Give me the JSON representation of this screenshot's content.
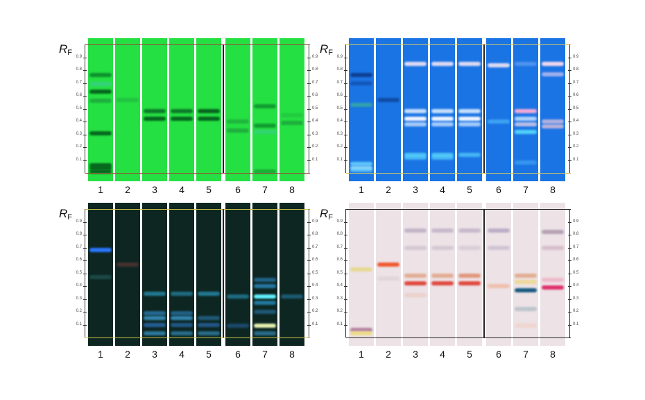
{
  "rf_label": {
    "main": "R",
    "sub": "F"
  },
  "ticks": [
    "0.1",
    "0.2",
    "0.3",
    "0.4",
    "0.5",
    "0.6",
    "0.7",
    "0.8",
    "0.9"
  ],
  "lane_numbers": [
    "1",
    "2",
    "3",
    "4",
    "5",
    "6",
    "7",
    "8"
  ],
  "plates": [
    {
      "name": "green-plate",
      "background": "#25e043",
      "line_color": "#9a4a3a",
      "left_labels": true,
      "right_labels": true,
      "lanes": [
        [
          {
            "rf": 0.76,
            "c": "#0c8a2c",
            "o": 0.9
          },
          {
            "rf": 0.69,
            "c": "#3fc9a0",
            "o": 0.6
          },
          {
            "rf": 0.63,
            "c": "#06661e",
            "o": 1
          },
          {
            "rf": 0.56,
            "c": "#1a9a3a",
            "o": 0.7
          },
          {
            "rf": 0.31,
            "c": "#06661e",
            "o": 1
          },
          {
            "rf": 0.06,
            "c": "#06661e",
            "o": 1
          },
          {
            "rf": 0.04,
            "c": "#06661e",
            "o": 1
          },
          {
            "rf": 0.01,
            "c": "#06661e",
            "o": 1
          }
        ],
        [
          {
            "rf": 0.57,
            "c": "#1a9a3a",
            "o": 0.4
          }
        ],
        [
          {
            "rf": 0.48,
            "c": "#0a7226",
            "o": 0.9
          },
          {
            "rf": 0.42,
            "c": "#06661e",
            "o": 1
          }
        ],
        [
          {
            "rf": 0.48,
            "c": "#0a7226",
            "o": 0.9
          },
          {
            "rf": 0.42,
            "c": "#06661e",
            "o": 1
          }
        ],
        [
          {
            "rf": 0.48,
            "c": "#06661e",
            "o": 1
          },
          {
            "rf": 0.42,
            "c": "#06661e",
            "o": 1
          }
        ],
        [
          {
            "rf": 0.4,
            "c": "#1a9a3a",
            "o": 0.6
          },
          {
            "rf": 0.33,
            "c": "#1a9a3a",
            "o": 0.7
          }
        ],
        [
          {
            "rf": 0.52,
            "c": "#0c8a2c",
            "o": 0.8
          },
          {
            "rf": 0.37,
            "c": "#0c8a2c",
            "o": 0.8
          },
          {
            "rf": 0.32,
            "c": "#3fc9a0",
            "o": 0.5
          },
          {
            "rf": 0.01,
            "c": "#0c8a2c",
            "o": 0.6
          }
        ],
        [
          {
            "rf": 0.45,
            "c": "#1a9a3a",
            "o": 0.3
          },
          {
            "rf": 0.39,
            "c": "#1a9a3a",
            "o": 0.7
          }
        ]
      ]
    },
    {
      "name": "blue-plate",
      "background": "#1b74e4",
      "line_color": "#c9c36a",
      "left_labels": true,
      "right_labels": true,
      "lanes": [
        [
          {
            "rf": 0.76,
            "c": "#0b3c8c",
            "o": 0.9
          },
          {
            "rf": 0.7,
            "c": "#0f4ca8",
            "o": 0.7
          },
          {
            "rf": 0.53,
            "c": "#3fbf8a",
            "o": 0.6
          },
          {
            "rf": 0.07,
            "c": "#70d8ff",
            "o": 0.8
          },
          {
            "rf": 0.04,
            "c": "#a0e8ff",
            "o": 0.8
          },
          {
            "rf": 0.02,
            "c": "#70d8ff",
            "o": 0.6
          }
        ],
        [
          {
            "rf": 0.57,
            "c": "#0b3c8c",
            "o": 0.7
          }
        ],
        [
          {
            "rf": 0.85,
            "c": "#e8e0f4",
            "o": 0.95
          },
          {
            "rf": 0.48,
            "c": "#d8eaff",
            "o": 0.9
          },
          {
            "rf": 0.42,
            "c": "#eef4ff",
            "o": 1
          },
          {
            "rf": 0.38,
            "c": "#c8e0ff",
            "o": 0.8
          },
          {
            "rf": 0.14,
            "c": "#60e0ff",
            "o": 0.7
          },
          {
            "rf": 0.12,
            "c": "#60e0ff",
            "o": 0.6
          }
        ],
        [
          {
            "rf": 0.85,
            "c": "#e8e0f4",
            "o": 0.95
          },
          {
            "rf": 0.48,
            "c": "#d8eaff",
            "o": 0.9
          },
          {
            "rf": 0.42,
            "c": "#eef4ff",
            "o": 1
          },
          {
            "rf": 0.38,
            "c": "#c8e0ff",
            "o": 0.8
          },
          {
            "rf": 0.14,
            "c": "#60e0ff",
            "o": 0.7
          },
          {
            "rf": 0.12,
            "c": "#60e0ff",
            "o": 0.6
          }
        ],
        [
          {
            "rf": 0.85,
            "c": "#e8e0f4",
            "o": 0.95
          },
          {
            "rf": 0.48,
            "c": "#d8eaff",
            "o": 0.9
          },
          {
            "rf": 0.42,
            "c": "#eef4ff",
            "o": 1
          },
          {
            "rf": 0.38,
            "c": "#c8e0ff",
            "o": 0.8
          },
          {
            "rf": 0.14,
            "c": "#60e0ff",
            "o": 0.6
          }
        ],
        [
          {
            "rf": 0.84,
            "c": "#e8e0f4",
            "o": 0.95
          },
          {
            "rf": 0.4,
            "c": "#60d0ff",
            "o": 0.5
          }
        ],
        [
          {
            "rf": 0.85,
            "c": "#9ac0ff",
            "o": 0.4
          },
          {
            "rf": 0.48,
            "c": "#f2a8d8",
            "o": 1
          },
          {
            "rf": 0.42,
            "c": "#d0e8ff",
            "o": 0.8
          },
          {
            "rf": 0.38,
            "c": "#e0d0e8",
            "o": 0.8
          },
          {
            "rf": 0.32,
            "c": "#60e8ff",
            "o": 0.8
          },
          {
            "rf": 0.08,
            "c": "#60c8ff",
            "o": 0.4
          }
        ],
        [
          {
            "rf": 0.85,
            "c": "#f4d8ec",
            "o": 1
          },
          {
            "rf": 0.77,
            "c": "#d8c8f0",
            "o": 0.7
          },
          {
            "rf": 0.4,
            "c": "#d8c0e0",
            "o": 0.8
          },
          {
            "rf": 0.36,
            "c": "#e0c0d8",
            "o": 0.8
          }
        ]
      ]
    },
    {
      "name": "dark-plate",
      "background": "#0d2622",
      "line_color": "#c8c040",
      "left_labels": true,
      "right_labels": true,
      "lanes": [
        [
          {
            "rf": 0.68,
            "c": "#2a78ff",
            "o": 1
          },
          {
            "rf": 0.47,
            "c": "#2a6a6a",
            "o": 0.5
          }
        ],
        [
          {
            "rf": 0.57,
            "c": "#6a3a3a",
            "o": 0.6
          }
        ],
        [
          {
            "rf": 0.34,
            "c": "#2a9ac0",
            "o": 0.7
          },
          {
            "rf": 0.19,
            "c": "#2a7ab0",
            "o": 0.8
          },
          {
            "rf": 0.15,
            "c": "#3a9ad0",
            "o": 0.8
          },
          {
            "rf": 0.1,
            "c": "#2a6ab0",
            "o": 0.8
          },
          {
            "rf": 0.03,
            "c": "#3a9ad0",
            "o": 0.7
          }
        ],
        [
          {
            "rf": 0.34,
            "c": "#2a9ac0",
            "o": 0.6
          },
          {
            "rf": 0.19,
            "c": "#2a7ab0",
            "o": 0.7
          },
          {
            "rf": 0.15,
            "c": "#3a9ad0",
            "o": 0.8
          },
          {
            "rf": 0.1,
            "c": "#2a6ab0",
            "o": 0.7
          },
          {
            "rf": 0.03,
            "c": "#3a9ad0",
            "o": 0.6
          }
        ],
        [
          {
            "rf": 0.34,
            "c": "#2a9ac0",
            "o": 0.7
          },
          {
            "rf": 0.15,
            "c": "#2a7ab0",
            "o": 0.6
          },
          {
            "rf": 0.1,
            "c": "#2a6ab0",
            "o": 0.7
          },
          {
            "rf": 0.03,
            "c": "#3a9ad0",
            "o": 0.6
          }
        ],
        [
          {
            "rf": 0.32,
            "c": "#2a9ac0",
            "o": 0.6
          },
          {
            "rf": 0.09,
            "c": "#2a6ab0",
            "o": 0.5
          }
        ],
        [
          {
            "rf": 0.45,
            "c": "#2a7ab0",
            "o": 0.7
          },
          {
            "rf": 0.4,
            "c": "#2a8ac0",
            "o": 0.8
          },
          {
            "rf": 0.32,
            "c": "#60f0ff",
            "o": 1
          },
          {
            "rf": 0.27,
            "c": "#2a9ad0",
            "o": 0.7
          },
          {
            "rf": 0.2,
            "c": "#2a7ab0",
            "o": 0.6
          },
          {
            "rf": 0.09,
            "c": "#e8f0b0",
            "o": 1
          },
          {
            "rf": 0.03,
            "c": "#3a9ad0",
            "o": 0.6
          }
        ],
        [
          {
            "rf": 0.32,
            "c": "#2a8ac0",
            "o": 0.5
          }
        ]
      ]
    },
    {
      "name": "white-light-plate",
      "background": "#ede2e6",
      "line_color": "#222222",
      "left_labels": true,
      "right_labels": true,
      "lanes": [
        [
          {
            "rf": 0.53,
            "c": "#e6d88a",
            "o": 0.9
          },
          {
            "rf": 0.06,
            "c": "#b07a9a",
            "o": 0.9
          },
          {
            "rf": 0.03,
            "c": "#eedb80",
            "o": 0.9
          }
        ],
        [
          {
            "rf": 0.57,
            "c": "#f05a30",
            "o": 1
          },
          {
            "rf": 0.46,
            "c": "#d8d0d4",
            "o": 0.6
          }
        ],
        [
          {
            "rf": 0.83,
            "c": "#b8a8c0",
            "o": 0.8
          },
          {
            "rf": 0.7,
            "c": "#c8b8c8",
            "o": 0.6
          },
          {
            "rf": 0.48,
            "c": "#e0a080",
            "o": 0.8
          },
          {
            "rf": 0.42,
            "c": "#e04a40",
            "o": 1
          },
          {
            "rf": 0.33,
            "c": "#e8c0b0",
            "o": 0.5
          }
        ],
        [
          {
            "rf": 0.83,
            "c": "#b8a8c0",
            "o": 0.7
          },
          {
            "rf": 0.7,
            "c": "#c8b8c8",
            "o": 0.6
          },
          {
            "rf": 0.48,
            "c": "#e0a080",
            "o": 0.8
          },
          {
            "rf": 0.42,
            "c": "#e04a40",
            "o": 1
          }
        ],
        [
          {
            "rf": 0.83,
            "c": "#b8a8c0",
            "o": 0.7
          },
          {
            "rf": 0.7,
            "c": "#c8b8c8",
            "o": 0.5
          },
          {
            "rf": 0.48,
            "c": "#e09070",
            "o": 0.9
          },
          {
            "rf": 0.42,
            "c": "#e04a40",
            "o": 1
          }
        ],
        [
          {
            "rf": 0.83,
            "c": "#b0a0c0",
            "o": 0.8
          },
          {
            "rf": 0.7,
            "c": "#c0b0c8",
            "o": 0.6
          },
          {
            "rf": 0.4,
            "c": "#f0b8a0",
            "o": 0.8
          }
        ],
        [
          {
            "rf": 0.48,
            "c": "#e0a080",
            "o": 0.8
          },
          {
            "rf": 0.43,
            "c": "#eed890",
            "o": 0.9
          },
          {
            "rf": 0.37,
            "c": "#1a5a80",
            "o": 1
          },
          {
            "rf": 0.22,
            "c": "#a8b8c0",
            "o": 0.7
          },
          {
            "rf": 0.09,
            "c": "#f0c8b8",
            "o": 0.5
          }
        ],
        [
          {
            "rf": 0.82,
            "c": "#b09ab0",
            "o": 0.9
          },
          {
            "rf": 0.7,
            "c": "#c8a8b8",
            "o": 0.6
          },
          {
            "rf": 0.45,
            "c": "#f0a0b8",
            "o": 0.6
          },
          {
            "rf": 0.39,
            "c": "#e0306a",
            "o": 1
          }
        ]
      ]
    }
  ]
}
